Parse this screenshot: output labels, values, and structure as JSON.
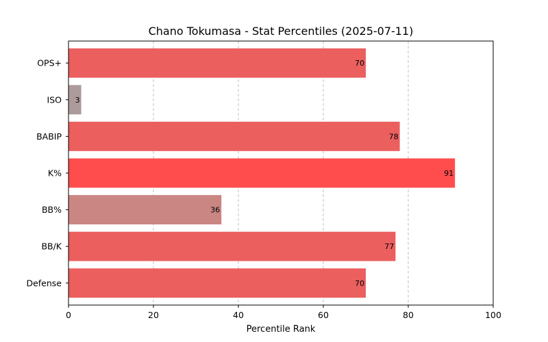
{
  "chart_data": {
    "type": "bar",
    "orientation": "horizontal",
    "title": "Chano Tokumasa - Stat Percentiles (2025-07-11)",
    "xlabel": "Percentile Rank",
    "ylabel": "",
    "xlim": [
      0,
      100
    ],
    "xticks": [
      0,
      20,
      40,
      60,
      80,
      100
    ],
    "grid": "vertical dashed",
    "categories": [
      "OPS+",
      "ISO",
      "BABIP",
      "K%",
      "BB%",
      "BB/K",
      "Defense"
    ],
    "values": [
      70,
      3,
      78,
      91,
      36,
      77,
      70
    ],
    "colors": [
      "#eb5f5f",
      "#ad9b9b",
      "#eb5f5f",
      "#ff4d4d",
      "#c98683",
      "#eb5f5f",
      "#eb5f5f"
    ]
  }
}
